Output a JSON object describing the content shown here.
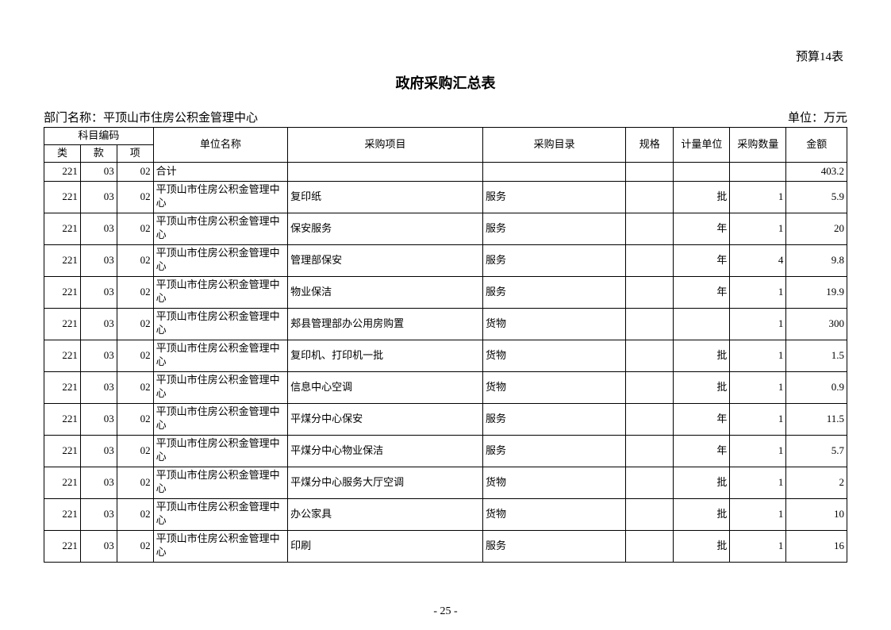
{
  "table_label": "预算14表",
  "title": "政府采购汇总表",
  "dept_label": "部门名称：",
  "dept_name": "平顶山市住房公积金管理中心",
  "unit_label": "单位：万元",
  "headers": {
    "code_group": "科目编码",
    "lei": "类",
    "kuan": "款",
    "xiang": "项",
    "unit_name": "单位名称",
    "item": "采购项目",
    "catalog": "采购目录",
    "spec": "规格",
    "measure": "计量单位",
    "qty": "采购数量",
    "amount": "金额"
  },
  "total_row": {
    "lei": "221",
    "kuan": "03",
    "xiang": "02",
    "unit_name": "合计",
    "item": "",
    "catalog": "",
    "spec": "",
    "measure": "",
    "qty": "",
    "amount": "403.2"
  },
  "rows": [
    {
      "lei": "221",
      "kuan": "03",
      "xiang": "02",
      "unit_name": "平顶山市住房公积金管理中心",
      "item": "复印纸",
      "catalog": "服务",
      "spec": "",
      "measure": "批",
      "qty": "1",
      "amount": "5.9"
    },
    {
      "lei": "221",
      "kuan": "03",
      "xiang": "02",
      "unit_name": "平顶山市住房公积金管理中心",
      "item": "保安服务",
      "catalog": "服务",
      "spec": "",
      "measure": "年",
      "qty": "1",
      "amount": "20"
    },
    {
      "lei": "221",
      "kuan": "03",
      "xiang": "02",
      "unit_name": "平顶山市住房公积金管理中心",
      "item": "管理部保安",
      "catalog": "服务",
      "spec": "",
      "measure": "年",
      "qty": "4",
      "amount": "9.8"
    },
    {
      "lei": "221",
      "kuan": "03",
      "xiang": "02",
      "unit_name": "平顶山市住房公积金管理中心",
      "item": "物业保洁",
      "catalog": "服务",
      "spec": "",
      "measure": "年",
      "qty": "1",
      "amount": "19.9"
    },
    {
      "lei": "221",
      "kuan": "03",
      "xiang": "02",
      "unit_name": "平顶山市住房公积金管理中心",
      "item": "郏县管理部办公用房购置",
      "catalog": "货物",
      "spec": "",
      "measure": "",
      "qty": "1",
      "amount": "300"
    },
    {
      "lei": "221",
      "kuan": "03",
      "xiang": "02",
      "unit_name": "平顶山市住房公积金管理中心",
      "item": "复印机、打印机一批",
      "catalog": "货物",
      "spec": "",
      "measure": "批",
      "qty": "1",
      "amount": "1.5"
    },
    {
      "lei": "221",
      "kuan": "03",
      "xiang": "02",
      "unit_name": "平顶山市住房公积金管理中心",
      "item": "信息中心空调",
      "catalog": "货物",
      "spec": "",
      "measure": "批",
      "qty": "1",
      "amount": "0.9"
    },
    {
      "lei": "221",
      "kuan": "03",
      "xiang": "02",
      "unit_name": "平顶山市住房公积金管理中心",
      "item": "平煤分中心保安",
      "catalog": "服务",
      "spec": "",
      "measure": "年",
      "qty": "1",
      "amount": "11.5"
    },
    {
      "lei": "221",
      "kuan": "03",
      "xiang": "02",
      "unit_name": "平顶山市住房公积金管理中心",
      "item": "平煤分中心物业保洁",
      "catalog": "服务",
      "spec": "",
      "measure": "年",
      "qty": "1",
      "amount": "5.7"
    },
    {
      "lei": "221",
      "kuan": "03",
      "xiang": "02",
      "unit_name": "平顶山市住房公积金管理中心",
      "item": "平煤分中心服务大厅空调",
      "catalog": "货物",
      "spec": "",
      "measure": "批",
      "qty": "1",
      "amount": "2"
    },
    {
      "lei": "221",
      "kuan": "03",
      "xiang": "02",
      "unit_name": "平顶山市住房公积金管理中心",
      "item": "办公家具",
      "catalog": "货物",
      "spec": "",
      "measure": "批",
      "qty": "1",
      "amount": "10"
    },
    {
      "lei": "221",
      "kuan": "03",
      "xiang": "02",
      "unit_name": "平顶山市住房公积金管理中心",
      "item": "印刷",
      "catalog": "服务",
      "spec": "",
      "measure": "批",
      "qty": "1",
      "amount": "16"
    }
  ],
  "page_number": "- 25 -"
}
